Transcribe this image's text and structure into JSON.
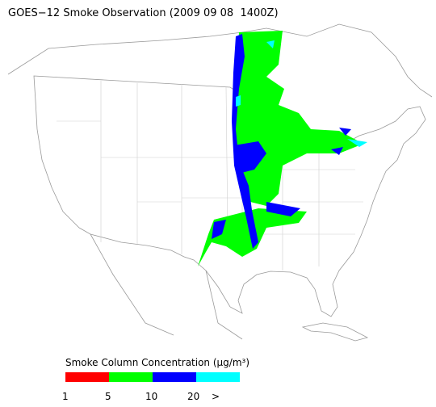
{
  "title": "GOES−12 Smoke Observation (2009 09 08  1400Z)",
  "legend": {
    "title": "Smoke Column Concentration (μg/m³)",
    "colors": [
      "#ff0000",
      "#00ff00",
      "#0000ff",
      "#00ffff"
    ],
    "labels": [
      "1",
      "5",
      "10",
      "20",
      ">"
    ]
  }
}
